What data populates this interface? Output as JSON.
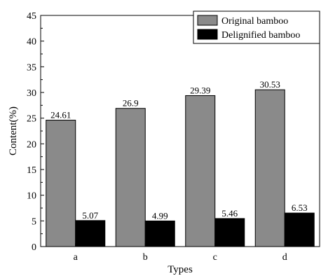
{
  "chart_data": {
    "type": "bar",
    "categories": [
      "a",
      "b",
      "c",
      "d"
    ],
    "series": [
      {
        "name": "Original bamboo",
        "values": [
          24.61,
          26.9,
          29.39,
          30.53
        ],
        "labels": [
          "24.61",
          "26.9",
          "29.39",
          "30.53"
        ],
        "color": "#8a8a8a"
      },
      {
        "name": "Delignified bamboo",
        "values": [
          5.07,
          4.99,
          5.46,
          6.53
        ],
        "labels": [
          "5.07",
          "4.99",
          "5.46",
          "6.53"
        ],
        "color": "#000000"
      }
    ],
    "xlabel": "Types",
    "ylabel": "Content(%)",
    "ylim": [
      0,
      45
    ],
    "yticks": [
      "0",
      "5",
      "10",
      "15",
      "20",
      "25",
      "30",
      "35",
      "40",
      "45"
    ],
    "legend_position": "top-right",
    "grid": false
  }
}
